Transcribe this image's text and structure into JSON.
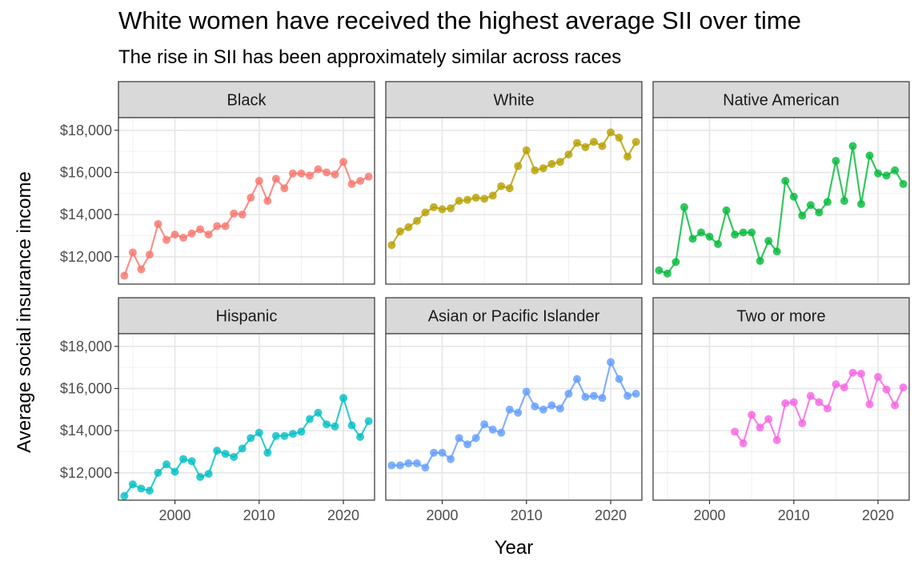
{
  "chart_data": {
    "type": "line",
    "title": "White women have received the highest average SII over time",
    "subtitle": "The rise in SII has been approximately similar across races",
    "xlabel": "Year",
    "ylabel": "Average social insurance income",
    "xlim": [
      1993.3,
      2023.7
    ],
    "ylim": [
      10700,
      18600
    ],
    "x_ticks": [
      2000,
      2010,
      2020
    ],
    "y_ticks": [
      12000,
      14000,
      16000,
      18000
    ],
    "y_tick_labels": [
      "$12,000",
      "$14,000",
      "$16,000",
      "$18,000"
    ],
    "grid": true,
    "legend": "none",
    "facet_rows": 2,
    "facet_cols": 3,
    "panels": [
      {
        "name": "Black",
        "color": "#F8766D",
        "x": [
          1994,
          1995,
          1996,
          1997,
          1998,
          1999,
          2000,
          2001,
          2002,
          2003,
          2004,
          2005,
          2006,
          2007,
          2008,
          2009,
          2010,
          2011,
          2012,
          2013,
          2014,
          2015,
          2016,
          2017,
          2018,
          2019,
          2020,
          2021,
          2022,
          2023
        ],
        "y": [
          11100,
          12200,
          11400,
          12100,
          13550,
          12800,
          13050,
          12900,
          13100,
          13300,
          13050,
          13450,
          13450,
          14050,
          14000,
          14800,
          15600,
          14650,
          15700,
          15250,
          15950,
          15950,
          15850,
          16150,
          16000,
          15900,
          16500,
          15450,
          15600,
          15800
        ]
      },
      {
        "name": "White",
        "color": "#B79F00",
        "x": [
          1994,
          1995,
          1996,
          1997,
          1998,
          1999,
          2000,
          2001,
          2002,
          2003,
          2004,
          2005,
          2006,
          2007,
          2008,
          2009,
          2010,
          2011,
          2012,
          2013,
          2014,
          2015,
          2016,
          2017,
          2018,
          2019,
          2020,
          2021,
          2022,
          2023
        ],
        "y": [
          12550,
          13200,
          13400,
          13700,
          14100,
          14350,
          14250,
          14300,
          14650,
          14700,
          14800,
          14750,
          14900,
          15350,
          15250,
          16300,
          17050,
          16100,
          16200,
          16400,
          16500,
          16850,
          17400,
          17200,
          17450,
          17250,
          17900,
          17650,
          16750,
          17450
        ]
      },
      {
        "name": "Native American",
        "color": "#00BA38",
        "x": [
          1994,
          1995,
          1996,
          1997,
          1998,
          1999,
          2000,
          2001,
          2002,
          2003,
          2004,
          2005,
          2006,
          2007,
          2008,
          2009,
          2010,
          2011,
          2012,
          2013,
          2014,
          2015,
          2016,
          2017,
          2018,
          2019,
          2020,
          2021,
          2022,
          2023
        ],
        "y": [
          11350,
          11200,
          11750,
          14350,
          12850,
          13150,
          12950,
          12600,
          14200,
          13050,
          13150,
          13150,
          11800,
          12750,
          12250,
          15600,
          14850,
          13950,
          14450,
          14100,
          14600,
          16550,
          14650,
          17250,
          14500,
          16800,
          15950,
          15850,
          16100,
          15450
        ]
      },
      {
        "name": "Hispanic",
        "color": "#00BFC4",
        "x": [
          1994,
          1995,
          1996,
          1997,
          1998,
          1999,
          2000,
          2001,
          2002,
          2003,
          2004,
          2005,
          2006,
          2007,
          2008,
          2009,
          2010,
          2011,
          2012,
          2013,
          2014,
          2015,
          2016,
          2017,
          2018,
          2019,
          2020,
          2021,
          2022,
          2023
        ],
        "y": [
          10900,
          11450,
          11250,
          11150,
          12000,
          12400,
          12050,
          12650,
          12550,
          11800,
          11950,
          13050,
          12900,
          12750,
          13150,
          13650,
          13900,
          12950,
          13750,
          13750,
          13850,
          13950,
          14550,
          14850,
          14300,
          14200,
          15550,
          14250,
          13700,
          14450
        ]
      },
      {
        "name": "Asian or Pacific Islander",
        "color": "#619CFF",
        "x": [
          1994,
          1995,
          1996,
          1997,
          1998,
          1999,
          2000,
          2001,
          2002,
          2003,
          2004,
          2005,
          2006,
          2007,
          2008,
          2009,
          2010,
          2011,
          2012,
          2013,
          2014,
          2015,
          2016,
          2017,
          2018,
          2019,
          2020,
          2021,
          2022,
          2023
        ],
        "y": [
          12350,
          12350,
          12450,
          12450,
          12250,
          12950,
          12950,
          12650,
          13650,
          13350,
          13650,
          14300,
          14050,
          13900,
          15000,
          14850,
          15850,
          15150,
          15000,
          15200,
          15050,
          15750,
          16450,
          15600,
          15650,
          15550,
          17250,
          16450,
          15650,
          15750
        ]
      },
      {
        "name": "Two or more",
        "color": "#F564E3",
        "x": [
          2003,
          2004,
          2005,
          2006,
          2007,
          2008,
          2009,
          2010,
          2011,
          2012,
          2013,
          2014,
          2015,
          2016,
          2017,
          2018,
          2019,
          2020,
          2021,
          2022,
          2023
        ],
        "y": [
          13950,
          13400,
          14750,
          14150,
          14550,
          13550,
          15300,
          15350,
          14350,
          15650,
          15350,
          15050,
          16200,
          16050,
          16750,
          16700,
          15250,
          16550,
          15950,
          15200,
          16050
        ]
      }
    ]
  }
}
